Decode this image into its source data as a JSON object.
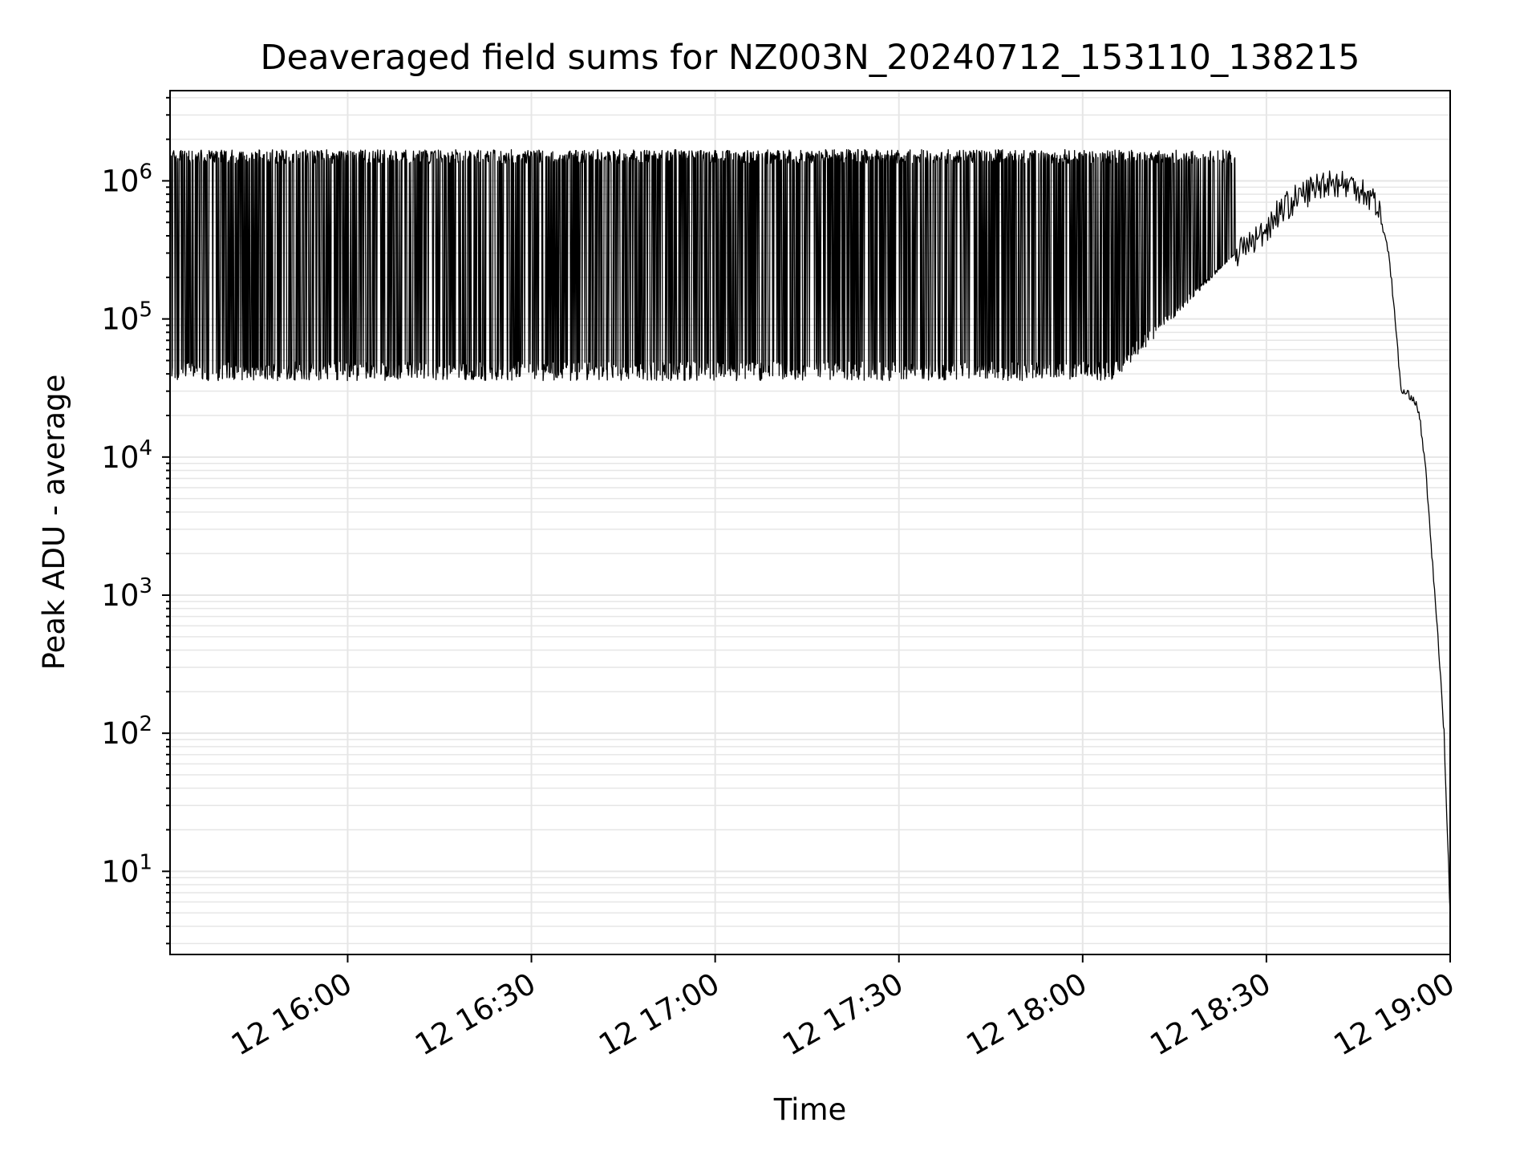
{
  "chart_data": {
    "type": "line",
    "title": "Deaveraged field sums for NZ003N_20240712_153110_138215",
    "xlabel": "Time",
    "ylabel": "Peak ADU - average",
    "xscale": "time",
    "yscale": "log",
    "xlim": [
      "2024-07-12 15:31",
      "2024-07-12 19:00"
    ],
    "ylim": [
      2.5,
      4500000
    ],
    "grid": true,
    "legend": "none",
    "x_ticks": [
      {
        "t": "2024-07-12 16:00",
        "label": "12 16:00"
      },
      {
        "t": "2024-07-12 16:30",
        "label": "12 16:30"
      },
      {
        "t": "2024-07-12 17:00",
        "label": "12 17:00"
      },
      {
        "t": "2024-07-12 17:30",
        "label": "12 17:30"
      },
      {
        "t": "2024-07-12 18:00",
        "label": "12 18:00"
      },
      {
        "t": "2024-07-12 18:30",
        "label": "12 18:30"
      },
      {
        "t": "2024-07-12 19:00",
        "label": "12 19:00"
      }
    ],
    "y_ticks": [
      {
        "value": 10,
        "base": "10",
        "exp": "1"
      },
      {
        "value": 100,
        "base": "10",
        "exp": "2"
      },
      {
        "value": 1000,
        "base": "10",
        "exp": "3"
      },
      {
        "value": 10000,
        "base": "10",
        "exp": "4"
      },
      {
        "value": 100000,
        "base": "10",
        "exp": "5"
      },
      {
        "value": 1000000,
        "base": "10",
        "exp": "6"
      }
    ],
    "series": [
      {
        "color": "#000000",
        "oscillation": {
          "x_range": [
            "2024-07-12 15:31",
            "2024-07-12 18:25"
          ],
          "high": 1500000,
          "low": 42000
        },
        "points": [
          {
            "t": "2024-07-12 18:05",
            "y": 120000
          },
          {
            "t": "2024-07-12 18:15",
            "y": 200000
          },
          {
            "t": "2024-07-12 18:25",
            "y": 300000
          },
          {
            "t": "2024-07-12 18:29",
            "y": 400000
          },
          {
            "t": "2024-07-12 18:32",
            "y": 600000
          },
          {
            "t": "2024-07-12 18:36",
            "y": 800000
          },
          {
            "t": "2024-07-12 18:40",
            "y": 1000000
          },
          {
            "t": "2024-07-12 18:45",
            "y": 900000
          },
          {
            "t": "2024-07-12 18:48",
            "y": 700000
          },
          {
            "t": "2024-07-12 18:50",
            "y": 300000
          },
          {
            "t": "2024-07-12 18:51",
            "y": 100000
          },
          {
            "t": "2024-07-12 18:52",
            "y": 30000
          },
          {
            "t": "2024-07-12 18:54",
            "y": 27000
          },
          {
            "t": "2024-07-12 18:55",
            "y": 20000
          },
          {
            "t": "2024-07-12 18:56",
            "y": 8000
          },
          {
            "t": "2024-07-12 18:57",
            "y": 2000
          },
          {
            "t": "2024-07-12 18:58",
            "y": 500
          },
          {
            "t": "2024-07-12 18:59",
            "y": 100
          },
          {
            "t": "2024-07-12 19:00",
            "y": 5
          }
        ]
      }
    ]
  }
}
